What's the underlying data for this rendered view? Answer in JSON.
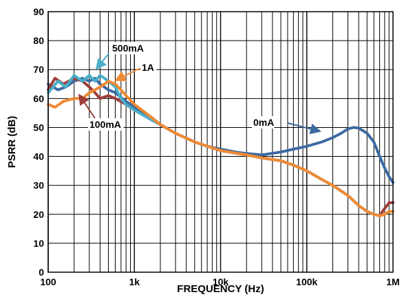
{
  "chart_data": {
    "type": "line",
    "title": "",
    "xlabel": "FREQUENCY (Hz)",
    "ylabel": "PSRR (dB)",
    "x_scale": "log",
    "xlim": [
      100,
      1000000
    ],
    "ylim": [
      0,
      90
    ],
    "grid": true,
    "legend": "none",
    "x_ticks": [
      {
        "value": 100,
        "label": "100"
      },
      {
        "value": 1000,
        "label": "1k"
      },
      {
        "value": 10000,
        "label": "10k"
      },
      {
        "value": 100000,
        "label": "100k"
      },
      {
        "value": 1000000,
        "label": "1M"
      }
    ],
    "y_ticks": [
      0,
      10,
      20,
      30,
      40,
      50,
      60,
      70,
      80,
      90
    ],
    "series": [
      {
        "name": "0mA",
        "color": "#3d6aa0",
        "x": [
          100,
          130,
          160,
          200,
          250,
          300,
          350,
          400,
          500,
          600,
          800,
          1000,
          1500,
          2000,
          3000,
          5000,
          7000,
          10000,
          15000,
          20000,
          30000,
          50000,
          70000,
          100000,
          150000,
          200000,
          250000,
          300000,
          350000,
          400000,
          500000,
          600000,
          700000,
          800000,
          900000,
          1000000
        ],
        "y": [
          65,
          63,
          64,
          66,
          67,
          66,
          67,
          65,
          63,
          62,
          59,
          57,
          54,
          51,
          48,
          45,
          43.5,
          42.5,
          41.5,
          41,
          40.5,
          41.5,
          42.5,
          43.5,
          45,
          46.5,
          48,
          49.5,
          50,
          49.8,
          48,
          45,
          40,
          36,
          33,
          31
        ]
      },
      {
        "name": "100mA",
        "color": "#9e3d3a",
        "x": [
          100,
          120,
          150,
          200,
          250,
          300,
          350,
          400,
          500,
          600,
          800,
          1000,
          1500,
          2000,
          3000,
          5000,
          10000,
          20000,
          30000,
          50000,
          70000,
          100000,
          150000,
          200000,
          300000,
          400000,
          500000,
          600000,
          700000,
          800000,
          900000,
          1000000
        ],
        "y": [
          63,
          67,
          65,
          67,
          66,
          64,
          62,
          60,
          61,
          60,
          58,
          56,
          53,
          51,
          48,
          45,
          42,
          40.5,
          39.5,
          38.5,
          37,
          35,
          32,
          30,
          26.5,
          23,
          21,
          20,
          19.5,
          22,
          24,
          24
        ]
      },
      {
        "name": "500mA",
        "color": "#4aaec8",
        "x": [
          100,
          130,
          160,
          200,
          250,
          300,
          350,
          400,
          450,
          500,
          550,
          600,
          700,
          800,
          1000,
          1500,
          2000,
          3000,
          5000,
          10000,
          20000,
          30000,
          50000,
          70000,
          100000,
          150000,
          200000,
          300000,
          400000,
          500000,
          600000,
          700000,
          800000,
          900000,
          1000000
        ],
        "y": [
          62,
          66,
          64,
          68,
          66,
          68,
          66,
          68,
          67,
          66,
          65,
          64,
          60,
          58,
          56,
          53,
          51,
          48,
          45,
          42,
          40.5,
          39.5,
          38.5,
          37,
          35,
          32,
          30,
          26.5,
          23,
          21,
          20,
          19.5,
          20,
          21,
          21
        ]
      },
      {
        "name": "1A",
        "color": "#f08a33",
        "x": [
          100,
          120,
          150,
          200,
          250,
          300,
          350,
          400,
          450,
          500,
          600,
          700,
          800,
          1000,
          1500,
          2000,
          3000,
          5000,
          10000,
          20000,
          30000,
          50000,
          70000,
          100000,
          150000,
          200000,
          300000,
          400000,
          500000,
          600000,
          700000,
          800000,
          900000,
          1000000
        ],
        "y": [
          58,
          57,
          59,
          60,
          60,
          62,
          63,
          64,
          65,
          66,
          65,
          63,
          61,
          58,
          54,
          51,
          48,
          45,
          42,
          40.5,
          39.5,
          38.5,
          37,
          35,
          32,
          30,
          26.5,
          23,
          21,
          20,
          19.5,
          20,
          21,
          21
        ]
      }
    ],
    "annotations": [
      {
        "text": "500mA",
        "series": "500mA"
      },
      {
        "text": "1A",
        "series": "1A"
      },
      {
        "text": "100mA",
        "series": "100mA"
      },
      {
        "text": "0mA",
        "series": "0mA"
      }
    ]
  }
}
